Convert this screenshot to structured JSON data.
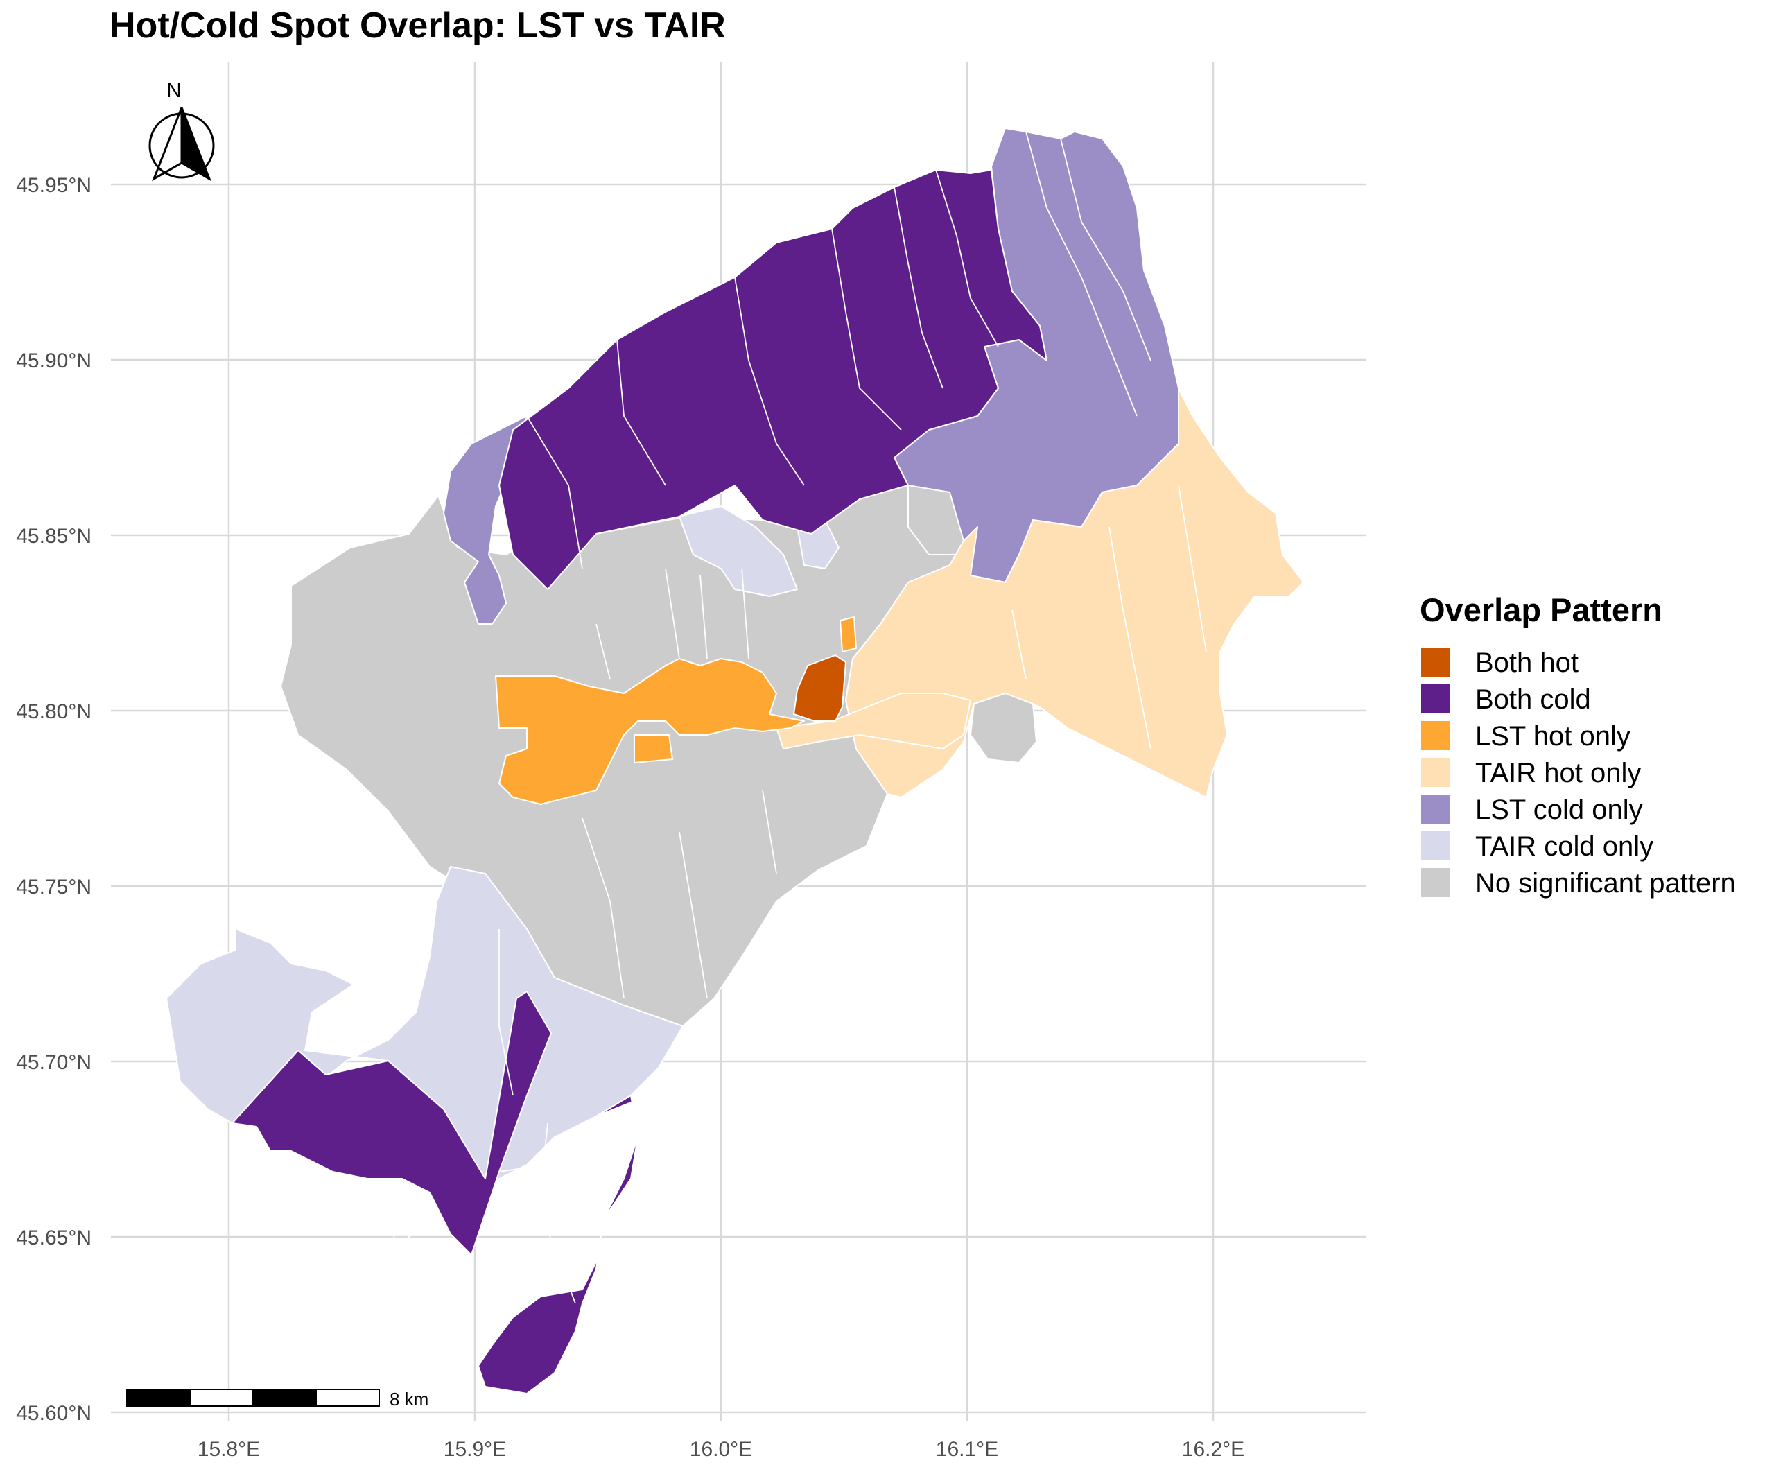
{
  "title": "Hot/Cold Spot Overlap: LST vs TAIR",
  "chart_data": {
    "type": "map",
    "x_ticks": [
      "15.8°E",
      "15.9°E",
      "16.0°E",
      "16.1°E",
      "16.2°E"
    ],
    "x_tick_values": [
      15.8,
      15.9,
      16.0,
      16.1,
      16.2
    ],
    "y_ticks": [
      "45.60°N",
      "45.65°N",
      "45.70°N",
      "45.75°N",
      "45.80°N",
      "45.85°N",
      "45.90°N",
      "45.95°N"
    ],
    "y_tick_values": [
      45.6,
      45.65,
      45.7,
      45.75,
      45.8,
      45.85,
      45.9,
      45.95
    ],
    "xlim": [
      15.76,
      16.26
    ],
    "ylim": [
      45.6,
      45.98
    ],
    "legend": {
      "title": "Overlap Pattern",
      "position": "right",
      "items": [
        {
          "key": "both_hot",
          "label": "Both hot",
          "color": "#cc5500"
        },
        {
          "key": "both_cold",
          "label": "Both cold",
          "color": "#5e1f8a"
        },
        {
          "key": "lst_hot",
          "label": "LST hot only",
          "color": "#ffa733"
        },
        {
          "key": "tair_hot",
          "label": "TAIR hot only",
          "color": "#ffe0b5"
        },
        {
          "key": "lst_cold",
          "label": "LST cold only",
          "color": "#9b8ec7"
        },
        {
          "key": "tair_cold",
          "label": "TAIR cold only",
          "color": "#d9d9ec"
        },
        {
          "key": "none",
          "label": "No significant pattern",
          "color": "#cccccc"
        }
      ]
    },
    "scale_bar": {
      "label": "8 km"
    },
    "north_arrow": {
      "label": "N"
    },
    "grid": true
  }
}
